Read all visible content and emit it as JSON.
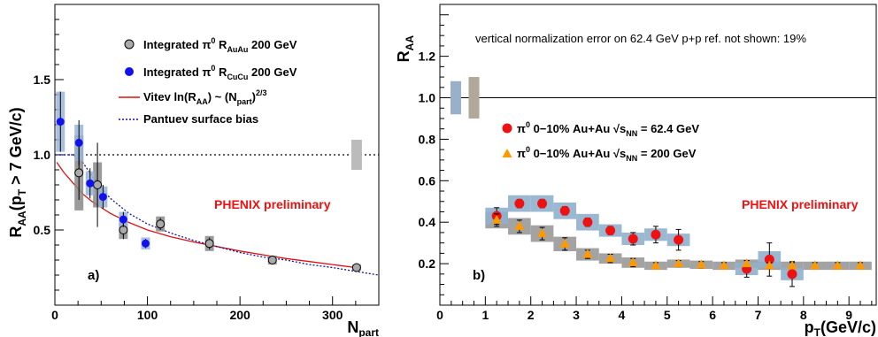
{
  "chart_data": [
    {
      "type": "scatter",
      "panel_label": "a)",
      "xlabel": "N",
      "xlabel_sub": "part",
      "ylabel": "R",
      "ylabel_sub": "AA",
      "ylabel_suffix": "(p",
      "ylabel_suffix_sub": "T",
      "ylabel_tail": " > 7 GeV/c)",
      "xlim": [
        0,
        350
      ],
      "ylim": [
        0,
        2.0
      ],
      "x_ticks": [
        0,
        100,
        200,
        300
      ],
      "y_ticks": [
        0.5,
        1.0,
        1.5
      ],
      "y_tick_labels": [
        "0.5",
        "1.0",
        "1.5"
      ],
      "reference_line": 1.0,
      "annotation": "PHENIX preliminary",
      "norm_box": {
        "x": 326,
        "ylo": 0.9,
        "yhi": 1.1
      },
      "series": [
        {
          "name": "Integrated π0 R_AuAu 200 GeV",
          "legend_parts": [
            "Integrated π",
            "0",
            " R",
            "AuAu",
            " 200 GeV"
          ],
          "color": "#999999",
          "points": [
            {
              "x": 26,
              "y": 0.88,
              "err": 0.18,
              "sys": 0.25
            },
            {
              "x": 46,
              "y": 0.8,
              "err": 0.28,
              "sys": 0.15
            },
            {
              "x": 74,
              "y": 0.5,
              "err": 0.06,
              "sys": 0.06
            },
            {
              "x": 114,
              "y": 0.54,
              "err": 0.04,
              "sys": 0.05
            },
            {
              "x": 167,
              "y": 0.41,
              "err": 0.04,
              "sys": 0.05
            },
            {
              "x": 235,
              "y": 0.3,
              "err": 0.03,
              "sys": 0.03
            },
            {
              "x": 326,
              "y": 0.25,
              "err": 0.02,
              "sys": 0.02
            }
          ]
        },
        {
          "name": "Integrated π0 R_CuCu 200 GeV",
          "legend_parts": [
            "Integrated π",
            "0",
            " R",
            "CuCu",
            " 200 GeV"
          ],
          "color": "#1111ee",
          "points": [
            {
              "x": 6,
              "y": 1.22,
              "err": 0.2,
              "sys": 0.2
            },
            {
              "x": 26,
              "y": 1.08,
              "err": 0.15,
              "sys": 0.12
            },
            {
              "x": 38,
              "y": 0.81,
              "err": 0.1,
              "sys": 0.08
            },
            {
              "x": 52,
              "y": 0.72,
              "err": 0.08,
              "sys": 0.07
            },
            {
              "x": 74,
              "y": 0.57,
              "err": 0.05,
              "sys": 0.05
            },
            {
              "x": 98,
              "y": 0.41,
              "err": 0.03,
              "sys": 0.04
            }
          ]
        }
      ],
      "curves": [
        {
          "name": "Vitev ln(R_AA) ~ (N_part)^2/3",
          "legend_parts": [
            "Vitev ln(R",
            "AA",
            ") ~ (N",
            "part",
            ")",
            "2/3"
          ],
          "color": "#dd1111",
          "style": "solid",
          "x": [
            2,
            10,
            20,
            30,
            40,
            50,
            60,
            80,
            100,
            125,
            150,
            175,
            200,
            225,
            250,
            275,
            300,
            325
          ],
          "y": [
            0.95,
            0.88,
            0.81,
            0.74,
            0.69,
            0.65,
            0.61,
            0.55,
            0.5,
            0.455,
            0.42,
            0.39,
            0.36,
            0.335,
            0.31,
            0.29,
            0.27,
            0.25
          ]
        },
        {
          "name": "Pantuev surface bias",
          "color": "#1111aa",
          "style": "dotted",
          "x": [
            2,
            10,
            20,
            30,
            40,
            50,
            60,
            80,
            100,
            125,
            150,
            175,
            200,
            225,
            250,
            275,
            300,
            325,
            350
          ],
          "y": [
            1.0,
            1.0,
            1.0,
            0.95,
            0.86,
            0.78,
            0.71,
            0.61,
            0.54,
            0.48,
            0.43,
            0.39,
            0.35,
            0.32,
            0.3,
            0.27,
            0.25,
            0.225,
            0.2
          ]
        }
      ]
    },
    {
      "type": "scatter",
      "panel_label": "b)",
      "xlabel": "p",
      "xlabel_sub": "T",
      "xlabel_tail": "(GeV/c)",
      "ylabel": "R",
      "ylabel_sub": "AA",
      "xlim": [
        0,
        9.6
      ],
      "ylim": [
        0,
        1.45
      ],
      "x_ticks": [
        0,
        1,
        2,
        3,
        4,
        5,
        6,
        7,
        8,
        9
      ],
      "y_ticks": [
        0.2,
        0.4,
        0.6,
        0.8,
        1.0,
        1.2
      ],
      "y_tick_labels": [
        "0.2",
        "0.4",
        "0.6",
        "0.8",
        "1.0",
        "1.2"
      ],
      "reference_line": 1.0,
      "note": "vertical normalization error on 62.4 GeV p+p ref. not shown: 19%",
      "annotation": "PHENIX preliminary",
      "norm_boxes": [
        {
          "x": 0.35,
          "ylo": 0.92,
          "yhi": 1.08,
          "color": "#9ab0c8"
        },
        {
          "x": 0.75,
          "ylo": 0.9,
          "yhi": 1.1,
          "color": "#b0a898"
        }
      ],
      "series": [
        {
          "name": "π0 0-10% Au+Au √sNN = 62.4 GeV",
          "legend_parts": [
            "π",
            "0",
            " 0−10% Au+Au √s",
            "NN",
            " = 62.4 GeV"
          ],
          "color": "#ee1111",
          "marker": "circle",
          "band_color": "#8fb0cc",
          "points": [
            {
              "x": 1.25,
              "y": 0.43,
              "err": 0.04,
              "sys": 0.04
            },
            {
              "x": 1.75,
              "y": 0.49,
              "err": 0.02,
              "sys": 0.04
            },
            {
              "x": 2.25,
              "y": 0.49,
              "err": 0.02,
              "sys": 0.04
            },
            {
              "x": 2.75,
              "y": 0.455,
              "err": 0.02,
              "sys": 0.04
            },
            {
              "x": 3.25,
              "y": 0.4,
              "err": 0.02,
              "sys": 0.04
            },
            {
              "x": 3.75,
              "y": 0.36,
              "err": 0.02,
              "sys": 0.03
            },
            {
              "x": 4.25,
              "y": 0.32,
              "err": 0.03,
              "sys": 0.03
            },
            {
              "x": 4.75,
              "y": 0.34,
              "err": 0.04,
              "sys": 0.03
            },
            {
              "x": 5.25,
              "y": 0.315,
              "err": 0.05,
              "sys": 0.03
            },
            {
              "x": 6.75,
              "y": 0.175,
              "err": 0.04,
              "sys": 0.03
            },
            {
              "x": 7.25,
              "y": 0.22,
              "err": 0.08,
              "sys": 0.04
            },
            {
              "x": 7.75,
              "y": 0.15,
              "err": 0.06,
              "sys": 0.03
            }
          ]
        },
        {
          "name": "π0 0-10% Au+Au √sNN = 200 GeV",
          "legend_parts": [
            "π",
            "0",
            " 0−10% Au+Au √s",
            "NN",
            " = 200 GeV"
          ],
          "color": "#ff9900",
          "marker": "triangle",
          "band_color": "#999999",
          "points": [
            {
              "x": 1.25,
              "y": 0.41,
              "err": 0.03,
              "sys": 0.04
            },
            {
              "x": 1.75,
              "y": 0.38,
              "err": 0.03,
              "sys": 0.04
            },
            {
              "x": 2.25,
              "y": 0.345,
              "err": 0.03,
              "sys": 0.04
            },
            {
              "x": 2.75,
              "y": 0.295,
              "err": 0.03,
              "sys": 0.035
            },
            {
              "x": 3.25,
              "y": 0.245,
              "err": 0.02,
              "sys": 0.03
            },
            {
              "x": 3.75,
              "y": 0.225,
              "err": 0.02,
              "sys": 0.025
            },
            {
              "x": 4.25,
              "y": 0.205,
              "err": 0.02,
              "sys": 0.025
            },
            {
              "x": 4.75,
              "y": 0.19,
              "err": 0.015,
              "sys": 0.02
            },
            {
              "x": 5.25,
              "y": 0.2,
              "err": 0.015,
              "sys": 0.02
            },
            {
              "x": 5.75,
              "y": 0.195,
              "err": 0.015,
              "sys": 0.02
            },
            {
              "x": 6.25,
              "y": 0.19,
              "err": 0.015,
              "sys": 0.02
            },
            {
              "x": 6.75,
              "y": 0.2,
              "err": 0.015,
              "sys": 0.02
            },
            {
              "x": 7.25,
              "y": 0.19,
              "err": 0.015,
              "sys": 0.02
            },
            {
              "x": 7.75,
              "y": 0.19,
              "err": 0.015,
              "sys": 0.02
            },
            {
              "x": 8.25,
              "y": 0.19,
              "err": 0.015,
              "sys": 0.02
            },
            {
              "x": 8.75,
              "y": 0.19,
              "err": 0.015,
              "sys": 0.02
            },
            {
              "x": 9.25,
              "y": 0.19,
              "err": 0.015,
              "sys": 0.02
            }
          ]
        }
      ]
    }
  ]
}
